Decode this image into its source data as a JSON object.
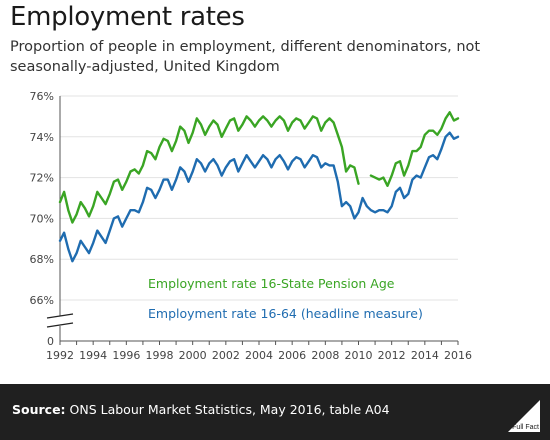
{
  "title": "Employment rates",
  "subtitle": "Proportion of people in employment, different denominators, not seasonally-adjusted, United Kingdom",
  "source_label": "Source:",
  "source_text": "ONS Labour Market Statistics, May 2016, table A04",
  "logo_text": "Full Fact",
  "colors": {
    "green": "#3aa524",
    "blue": "#1f6cb0",
    "axis": "#555555",
    "footer": "#202020"
  },
  "chart_data": {
    "type": "line",
    "xlim": [
      1992,
      2016
    ],
    "ylim_break": true,
    "y_ticks": [
      66,
      68,
      70,
      72,
      74,
      76
    ],
    "y_tick_labels": [
      "66%",
      "68%",
      "70%",
      "72%",
      "74%",
      "76%"
    ],
    "y_zero_label": "0",
    "x_ticks": [
      1992,
      1994,
      1996,
      1998,
      2000,
      2002,
      2004,
      2006,
      2008,
      2010,
      2012,
      2014,
      2016
    ],
    "series": [
      {
        "name": "Employment rate 16-State Pension Age",
        "color": "#3aa524",
        "segments": [
          {
            "x": [
              1992,
              1992.25,
              1992.5,
              1992.75,
              1993,
              1993.25,
              1993.5,
              1993.75,
              1994,
              1994.25,
              1994.5,
              1994.75,
              1995,
              1995.25,
              1995.5,
              1995.75,
              1996,
              1996.25,
              1996.5,
              1996.75,
              1997,
              1997.25,
              1997.5,
              1997.75,
              1998,
              1998.25,
              1998.5,
              1998.75,
              1999,
              1999.25,
              1999.5,
              1999.75,
              2000,
              2000.25,
              2000.5,
              2000.75,
              2001,
              2001.25,
              2001.5,
              2001.75,
              2002,
              2002.25,
              2002.5,
              2002.75,
              2003,
              2003.25,
              2003.5,
              2003.75,
              2004,
              2004.25,
              2004.5,
              2004.75,
              2005,
              2005.25,
              2005.5,
              2005.75,
              2006,
              2006.25,
              2006.5,
              2006.75,
              2007,
              2007.25,
              2007.5,
              2007.75,
              2008,
              2008.25,
              2008.5,
              2008.75,
              2009,
              2009.25,
              2009.5,
              2009.75,
              2010
            ],
            "y": [
              70.8,
              71.3,
              70.4,
              69.8,
              70.2,
              70.8,
              70.5,
              70.1,
              70.6,
              71.3,
              71.0,
              70.7,
              71.2,
              71.8,
              71.9,
              71.4,
              71.8,
              72.3,
              72.4,
              72.2,
              72.6,
              73.3,
              73.2,
              72.9,
              73.5,
              73.9,
              73.8,
              73.3,
              73.8,
              74.5,
              74.3,
              73.7,
              74.2,
              74.9,
              74.6,
              74.1,
              74.5,
              74.8,
              74.6,
              74.0,
              74.4,
              74.8,
              74.9,
              74.3,
              74.6,
              75.0,
              74.8,
              74.5,
              74.8,
              75.0,
              74.8,
              74.5,
              74.8,
              75.0,
              74.8,
              74.3,
              74.7,
              74.9,
              74.8,
              74.4,
              74.7,
              75.0,
              74.9,
              74.3,
              74.7,
              74.9,
              74.7,
              74.1,
              73.5,
              72.3,
              72.6,
              72.5,
              71.7
            ]
          },
          {
            "x": [
              2010.75,
              2011,
              2011.25,
              2011.5,
              2011.75,
              2012,
              2012.25,
              2012.5,
              2012.75,
              2013,
              2013.25,
              2013.5,
              2013.75,
              2014,
              2014.25,
              2014.5,
              2014.75,
              2015,
              2015.25,
              2015.5,
              2015.75,
              2016
            ],
            "y": [
              72.1,
              72.0,
              71.9,
              72.0,
              71.6,
              72.1,
              72.7,
              72.8,
              72.1,
              72.6,
              73.3,
              73.3,
              73.5,
              74.1,
              74.3,
              74.3,
              74.1,
              74.4,
              74.9,
              75.2,
              74.8,
              74.9
            ]
          }
        ],
        "label_position": "lower-middle"
      },
      {
        "name": "Employment rate 16-64 (headline measure)",
        "color": "#1f6cb0",
        "segments": [
          {
            "x": [
              1992,
              1992.25,
              1992.5,
              1992.75,
              1993,
              1993.25,
              1993.5,
              1993.75,
              1994,
              1994.25,
              1994.5,
              1994.75,
              1995,
              1995.25,
              1995.5,
              1995.75,
              1996,
              1996.25,
              1996.5,
              1996.75,
              1997,
              1997.25,
              1997.5,
              1997.75,
              1998,
              1998.25,
              1998.5,
              1998.75,
              1999,
              1999.25,
              1999.5,
              1999.75,
              2000,
              2000.25,
              2000.5,
              2000.75,
              2001,
              2001.25,
              2001.5,
              2001.75,
              2002,
              2002.25,
              2002.5,
              2002.75,
              2003,
              2003.25,
              2003.5,
              2003.75,
              2004,
              2004.25,
              2004.5,
              2004.75,
              2005,
              2005.25,
              2005.5,
              2005.75,
              2006,
              2006.25,
              2006.5,
              2006.75,
              2007,
              2007.25,
              2007.5,
              2007.75,
              2008,
              2008.25,
              2008.5,
              2008.75,
              2009,
              2009.25,
              2009.5,
              2009.75,
              2010,
              2010.25,
              2010.5,
              2010.75,
              2011,
              2011.25,
              2011.5,
              2011.75,
              2012,
              2012.25,
              2012.5,
              2012.75,
              2013,
              2013.25,
              2013.5,
              2013.75,
              2014,
              2014.25,
              2014.5,
              2014.75,
              2015,
              2015.25,
              2015.5,
              2015.75,
              2016
            ],
            "y": [
              68.9,
              69.3,
              68.5,
              67.9,
              68.3,
              68.9,
              68.6,
              68.3,
              68.8,
              69.4,
              69.1,
              68.8,
              69.4,
              70.0,
              70.1,
              69.6,
              70.0,
              70.4,
              70.4,
              70.3,
              70.8,
              71.5,
              71.4,
              71.0,
              71.4,
              71.9,
              71.9,
              71.4,
              71.9,
              72.5,
              72.3,
              71.8,
              72.3,
              72.9,
              72.7,
              72.3,
              72.7,
              72.9,
              72.6,
              72.1,
              72.5,
              72.8,
              72.9,
              72.3,
              72.7,
              73.1,
              72.8,
              72.5,
              72.8,
              73.1,
              72.9,
              72.5,
              72.9,
              73.1,
              72.8,
              72.4,
              72.8,
              73.0,
              72.9,
              72.5,
              72.8,
              73.1,
              73.0,
              72.5,
              72.7,
              72.6,
              72.6,
              71.8,
              70.6,
              70.8,
              70.6,
              70.0,
              70.3,
              71.0,
              70.6,
              70.4,
              70.3,
              70.4,
              70.4,
              70.3,
              70.6,
              71.3,
              71.5,
              71.0,
              71.2,
              71.9,
              72.1,
              72.0,
              72.5,
              73.0,
              73.1,
              72.9,
              73.4,
              74.0,
              74.2,
              73.9,
              74.0
            ]
          }
        ],
        "label_position": "bottom-middle"
      }
    ]
  }
}
